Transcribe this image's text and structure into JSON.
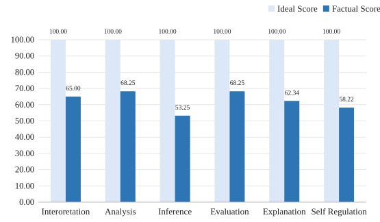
{
  "chart_data": {
    "type": "bar",
    "categories": [
      "Interoretation",
      "Analysis",
      "Inference",
      "Evaluation",
      "Explanation",
      "Self Regulation"
    ],
    "series": [
      {
        "name": "Ideal Score",
        "color": "#dce8f7",
        "values": [
          100.0,
          100.0,
          100.0,
          100.0,
          100.0,
          100.0
        ],
        "labels": [
          "100.00",
          "100.00",
          "100.00",
          "100.00",
          "100.00",
          "100.00"
        ]
      },
      {
        "name": "Factual Score",
        "color": "#2e75b6",
        "values": [
          65.0,
          68.25,
          53.25,
          68.25,
          62.34,
          58.22
        ],
        "labels": [
          "65.00",
          "68.25",
          "53.25",
          "68.25",
          "62.34",
          "58.22"
        ]
      }
    ],
    "ylim": [
      0,
      100
    ],
    "yticks": [
      "0.00",
      "10.00",
      "20.00",
      "30.00",
      "40.00",
      "50.00",
      "60.00",
      "70.00",
      "80.00",
      "90.00",
      "100.00"
    ],
    "grid": true,
    "legend_position": "top-right",
    "title": "",
    "xlabel": "",
    "ylabel": ""
  }
}
